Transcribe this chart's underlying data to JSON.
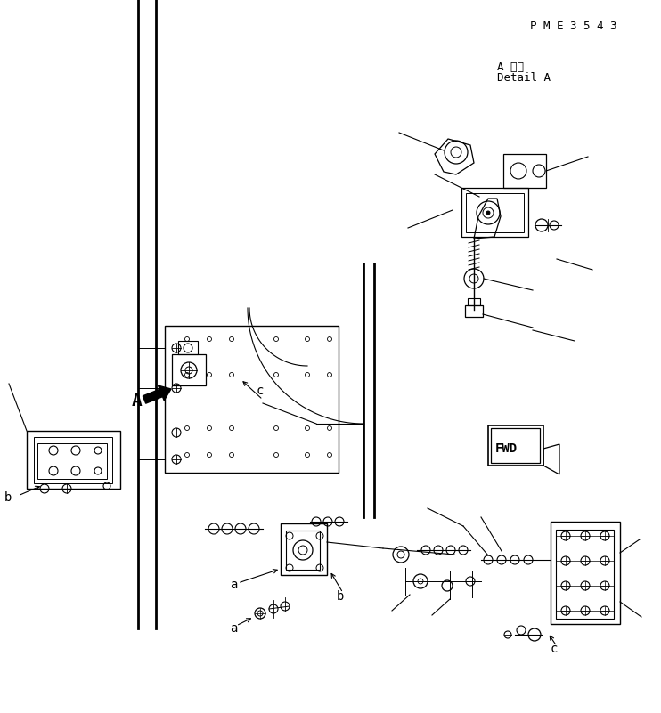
{
  "bg_color": "#ffffff",
  "line_color": "#000000",
  "fig_width": 7.42,
  "fig_height": 8.01,
  "dpi": 100,
  "watermark": "P M E 3 5 4 3",
  "detail_label_jp": "A 詳細",
  "detail_label_en": "Detail A",
  "label_a1": "a",
  "label_a2": "a",
  "label_b1": "b",
  "label_b2": "b",
  "label_c1": "c",
  "label_c2": "c",
  "label_A": "A",
  "fwd_text": "FWD"
}
